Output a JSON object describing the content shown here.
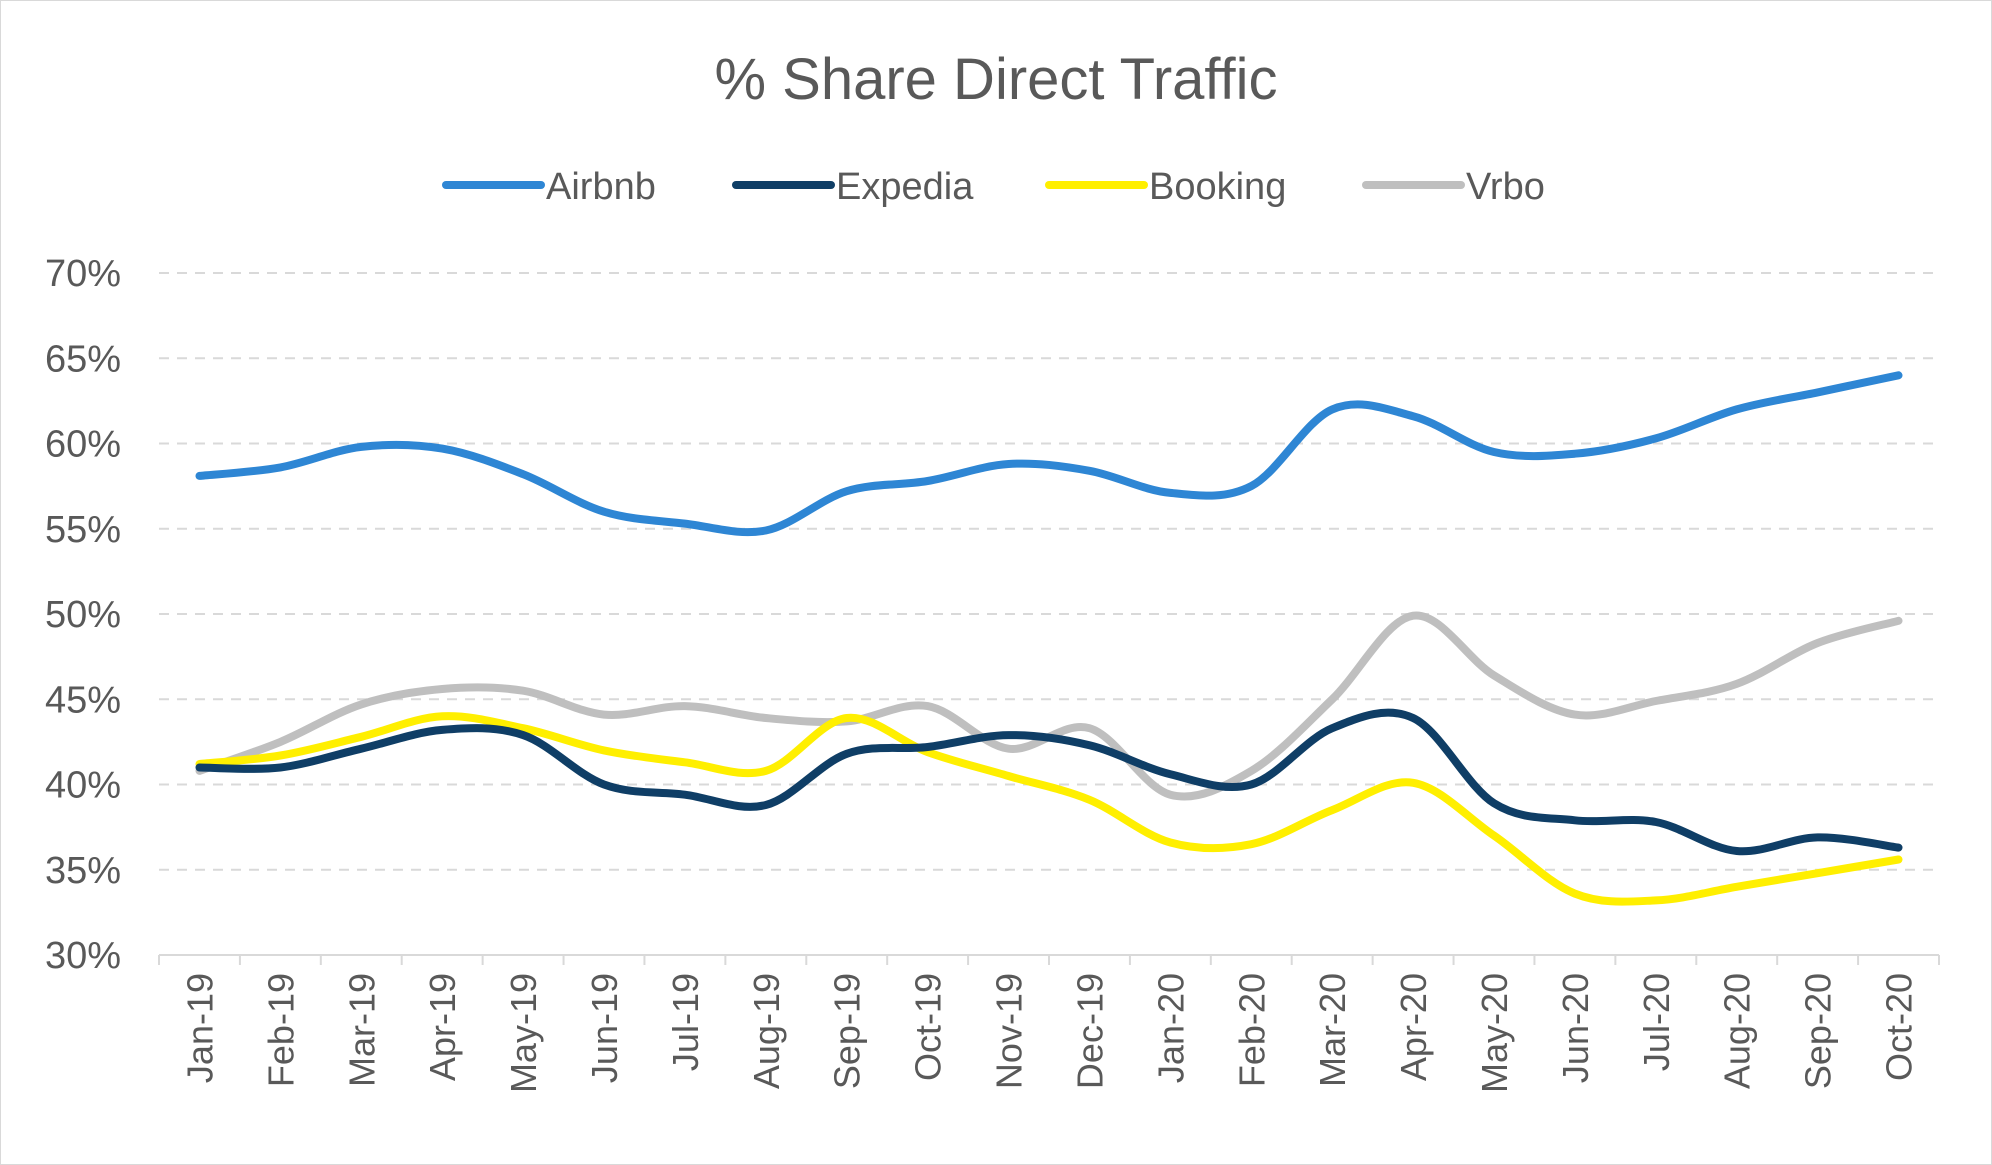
{
  "chart_data": {
    "type": "line",
    "title": "% Share Direct Traffic",
    "xlabel": "",
    "ylabel": "",
    "ylim": [
      30,
      70
    ],
    "yticks": [
      "30%",
      "35%",
      "40%",
      "45%",
      "50%",
      "55%",
      "60%",
      "65%",
      "70%"
    ],
    "ytick_values": [
      30,
      35,
      40,
      45,
      50,
      55,
      60,
      65,
      70
    ],
    "grid": true,
    "legend_position": "top",
    "categories": [
      "Jan-19",
      "Feb-19",
      "Mar-19",
      "Apr-19",
      "May-19",
      "Jun-19",
      "Jul-19",
      "Aug-19",
      "Sep-19",
      "Oct-19",
      "Nov-19",
      "Dec-19",
      "Jan-20",
      "Feb-20",
      "Mar-20",
      "Apr-20",
      "May-20",
      "Jun-20",
      "Jul-20",
      "Aug-20",
      "Sep-20",
      "Oct-20"
    ],
    "series": [
      {
        "name": "Airbnb",
        "color": "#2e86d4",
        "values": [
          58.1,
          58.6,
          59.8,
          59.7,
          58.2,
          56.0,
          55.3,
          54.9,
          57.2,
          57.8,
          58.8,
          58.4,
          57.1,
          57.5,
          62.0,
          61.6,
          59.5,
          59.4,
          60.3,
          62.0,
          63.0,
          64.0
        ]
      },
      {
        "name": "Expedia",
        "color": "#0f3e66",
        "values": [
          41.0,
          41.0,
          42.1,
          43.2,
          42.9,
          40.0,
          39.4,
          38.8,
          41.8,
          42.2,
          42.9,
          42.3,
          40.6,
          40.0,
          43.3,
          43.9,
          38.9,
          37.9,
          37.8,
          36.1,
          36.9,
          36.3
        ]
      },
      {
        "name": "Booking",
        "color": "#ffef00",
        "values": [
          41.2,
          41.7,
          42.8,
          44.0,
          43.3,
          42.0,
          41.3,
          40.8,
          43.9,
          41.9,
          40.5,
          39.1,
          36.6,
          36.5,
          38.5,
          40.1,
          37.0,
          33.6,
          33.2,
          34.0,
          34.8,
          35.6
        ]
      },
      {
        "name": "Vrbo",
        "color": "#bfbfbf",
        "values": [
          40.8,
          42.5,
          44.7,
          45.6,
          45.5,
          44.1,
          44.6,
          43.9,
          43.7,
          44.6,
          42.1,
          43.3,
          39.4,
          40.8,
          45.0,
          49.9,
          46.4,
          44.1,
          44.9,
          45.9,
          48.3,
          49.6
        ]
      }
    ]
  }
}
